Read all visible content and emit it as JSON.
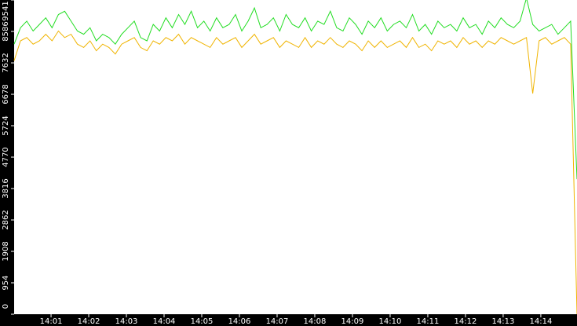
{
  "chart_data": {
    "type": "line",
    "xlim": [
      0.02,
      14.96
    ],
    "xticks": [
      {
        "value": 1,
        "label": "14:01"
      },
      {
        "value": 2,
        "label": "14:02"
      },
      {
        "value": 3,
        "label": "14:03"
      },
      {
        "value": 4,
        "label": "14:04"
      },
      {
        "value": 5,
        "label": "14:05"
      },
      {
        "value": 6,
        "label": "14:06"
      },
      {
        "value": 7,
        "label": "14:07"
      },
      {
        "value": 8,
        "label": "14:08"
      },
      {
        "value": 9,
        "label": "14:09"
      },
      {
        "value": 10,
        "label": "14:10"
      },
      {
        "value": 11,
        "label": "14:11"
      },
      {
        "value": 12,
        "label": "14:12"
      },
      {
        "value": 13,
        "label": "14:13"
      },
      {
        "value": 14,
        "label": "14:14"
      }
    ],
    "ylim": [
      0,
      9541
    ],
    "yticks": [
      0,
      954,
      1908,
      2862,
      3816,
      4770,
      5724,
      6678,
      7632,
      8586,
      9541
    ],
    "series": [
      {
        "color": "#22dd22",
        "values": [
          8200,
          8700,
          8900,
          8600,
          8800,
          9000,
          8700,
          9100,
          9200,
          8900,
          8600,
          8500,
          8700,
          8300,
          8500,
          8400,
          8200,
          8500,
          8700,
          8900,
          8400,
          8300,
          8800,
          8600,
          9000,
          8700,
          9100,
          8800,
          9200,
          8700,
          8900,
          8600,
          9000,
          8700,
          8800,
          9100,
          8600,
          8900,
          9300,
          8700,
          8800,
          9000,
          8600,
          9100,
          8800,
          8700,
          9000,
          8600,
          8900,
          8800,
          9200,
          8700,
          8600,
          9000,
          8800,
          8500,
          8900,
          8700,
          9000,
          8600,
          8800,
          8900,
          8700,
          9100,
          8600,
          8800,
          8500,
          8900,
          8700,
          8800,
          8600,
          9000,
          8700,
          8800,
          8500,
          8900,
          8700,
          9000,
          8800,
          8700,
          8900,
          9600,
          8800,
          8600,
          8700,
          8800,
          8500,
          8700,
          8900,
          4100
        ]
      },
      {
        "color": "#f0b400",
        "values": [
          7700,
          8300,
          8400,
          8200,
          8300,
          8500,
          8300,
          8600,
          8400,
          8500,
          8200,
          8100,
          8300,
          8000,
          8200,
          8100,
          7900,
          8200,
          8300,
          8400,
          8100,
          8000,
          8300,
          8200,
          8400,
          8300,
          8500,
          8200,
          8400,
          8300,
          8200,
          8100,
          8400,
          8200,
          8300,
          8400,
          8100,
          8300,
          8500,
          8200,
          8300,
          8400,
          8100,
          8300,
          8200,
          8100,
          8400,
          8100,
          8300,
          8200,
          8400,
          8200,
          8100,
          8300,
          8200,
          8000,
          8300,
          8100,
          8300,
          8100,
          8200,
          8300,
          8100,
          8400,
          8100,
          8200,
          8000,
          8300,
          8200,
          8300,
          8100,
          8400,
          8200,
          8300,
          8100,
          8300,
          8200,
          8400,
          8300,
          8200,
          8300,
          8400,
          6700,
          8300,
          8400,
          8200,
          8300,
          8400,
          8200,
          0
        ]
      }
    ]
  }
}
